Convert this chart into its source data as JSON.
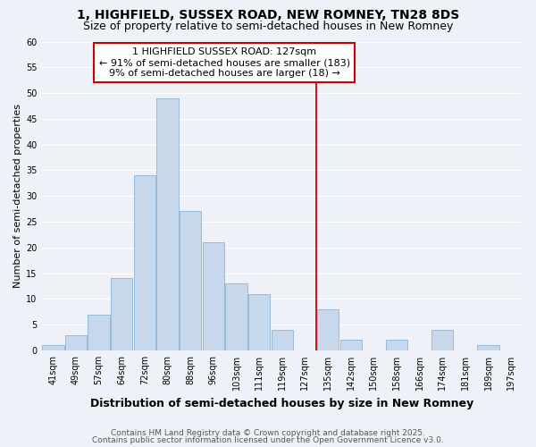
{
  "title": "1, HIGHFIELD, SUSSEX ROAD, NEW ROMNEY, TN28 8DS",
  "subtitle": "Size of property relative to semi-detached houses in New Romney",
  "xlabel": "Distribution of semi-detached houses by size in New Romney",
  "ylabel": "Number of semi-detached properties",
  "bar_labels": [
    "41sqm",
    "49sqm",
    "57sqm",
    "64sqm",
    "72sqm",
    "80sqm",
    "88sqm",
    "96sqm",
    "103sqm",
    "111sqm",
    "119sqm",
    "127sqm",
    "135sqm",
    "142sqm",
    "150sqm",
    "158sqm",
    "166sqm",
    "174sqm",
    "181sqm",
    "189sqm",
    "197sqm"
  ],
  "bar_values": [
    1,
    3,
    7,
    14,
    34,
    49,
    27,
    21,
    13,
    11,
    4,
    0,
    8,
    2,
    0,
    2,
    0,
    4,
    0,
    1,
    0
  ],
  "bar_color": "#c8d8ec",
  "bar_edge_color": "#8ab4d4",
  "red_line_index": 11,
  "annotation_title": "1 HIGHFIELD SUSSEX ROAD: 127sqm",
  "annotation_line1": "← 91% of semi-detached houses are smaller (183)",
  "annotation_line2": "9% of semi-detached houses are larger (18) →",
  "annotation_box_color": "#ffffff",
  "annotation_border_color": "#cc0000",
  "ylim": [
    0,
    60
  ],
  "yticks": [
    0,
    5,
    10,
    15,
    20,
    25,
    30,
    35,
    40,
    45,
    50,
    55,
    60
  ],
  "footnote1": "Contains HM Land Registry data © Crown copyright and database right 2025.",
  "footnote2": "Contains public sector information licensed under the Open Government Licence v3.0.",
  "bg_color": "#eef2f8",
  "plot_bg_color": "#eef2f8",
  "grid_color": "#ffffff",
  "title_fontsize": 10,
  "subtitle_fontsize": 9,
  "xlabel_fontsize": 9,
  "ylabel_fontsize": 8,
  "tick_fontsize": 7,
  "annotation_fontsize": 8,
  "footnote_fontsize": 6.5
}
